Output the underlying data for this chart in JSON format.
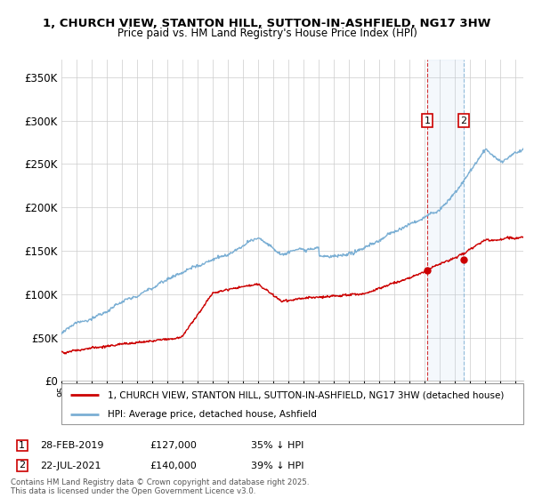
{
  "title_line1": "1, CHURCH VIEW, STANTON HILL, SUTTON-IN-ASHFIELD, NG17 3HW",
  "title_line2": "Price paid vs. HM Land Registry's House Price Index (HPI)",
  "ylim": [
    0,
    370000
  ],
  "yticks": [
    0,
    50000,
    100000,
    150000,
    200000,
    250000,
    300000,
    350000
  ],
  "ytick_labels": [
    "£0",
    "£50K",
    "£100K",
    "£150K",
    "£200K",
    "£250K",
    "£300K",
    "£350K"
  ],
  "legend_property_label": "1, CHURCH VIEW, STANTON HILL, SUTTON-IN-ASHFIELD, NG17 3HW (detached house)",
  "legend_hpi_label": "HPI: Average price, detached house, Ashfield",
  "property_color": "#cc0000",
  "hpi_color": "#7bafd4",
  "marker1_date": 2019.16,
  "marker1_price": 127000,
  "marker2_date": 2021.56,
  "marker2_price": 140000,
  "marker1_row": "28-FEB-2019",
  "marker1_amount": "£127,000",
  "marker1_hpi": "35% ↓ HPI",
  "marker2_row": "22-JUL-2021",
  "marker2_amount": "£140,000",
  "marker2_hpi": "39% ↓ HPI",
  "footnote": "Contains HM Land Registry data © Crown copyright and database right 2025.\nThis data is licensed under the Open Government Licence v3.0.",
  "background_color": "#ffffff",
  "grid_color": "#cccccc",
  "xmin": 1995,
  "xmax": 2025.5
}
